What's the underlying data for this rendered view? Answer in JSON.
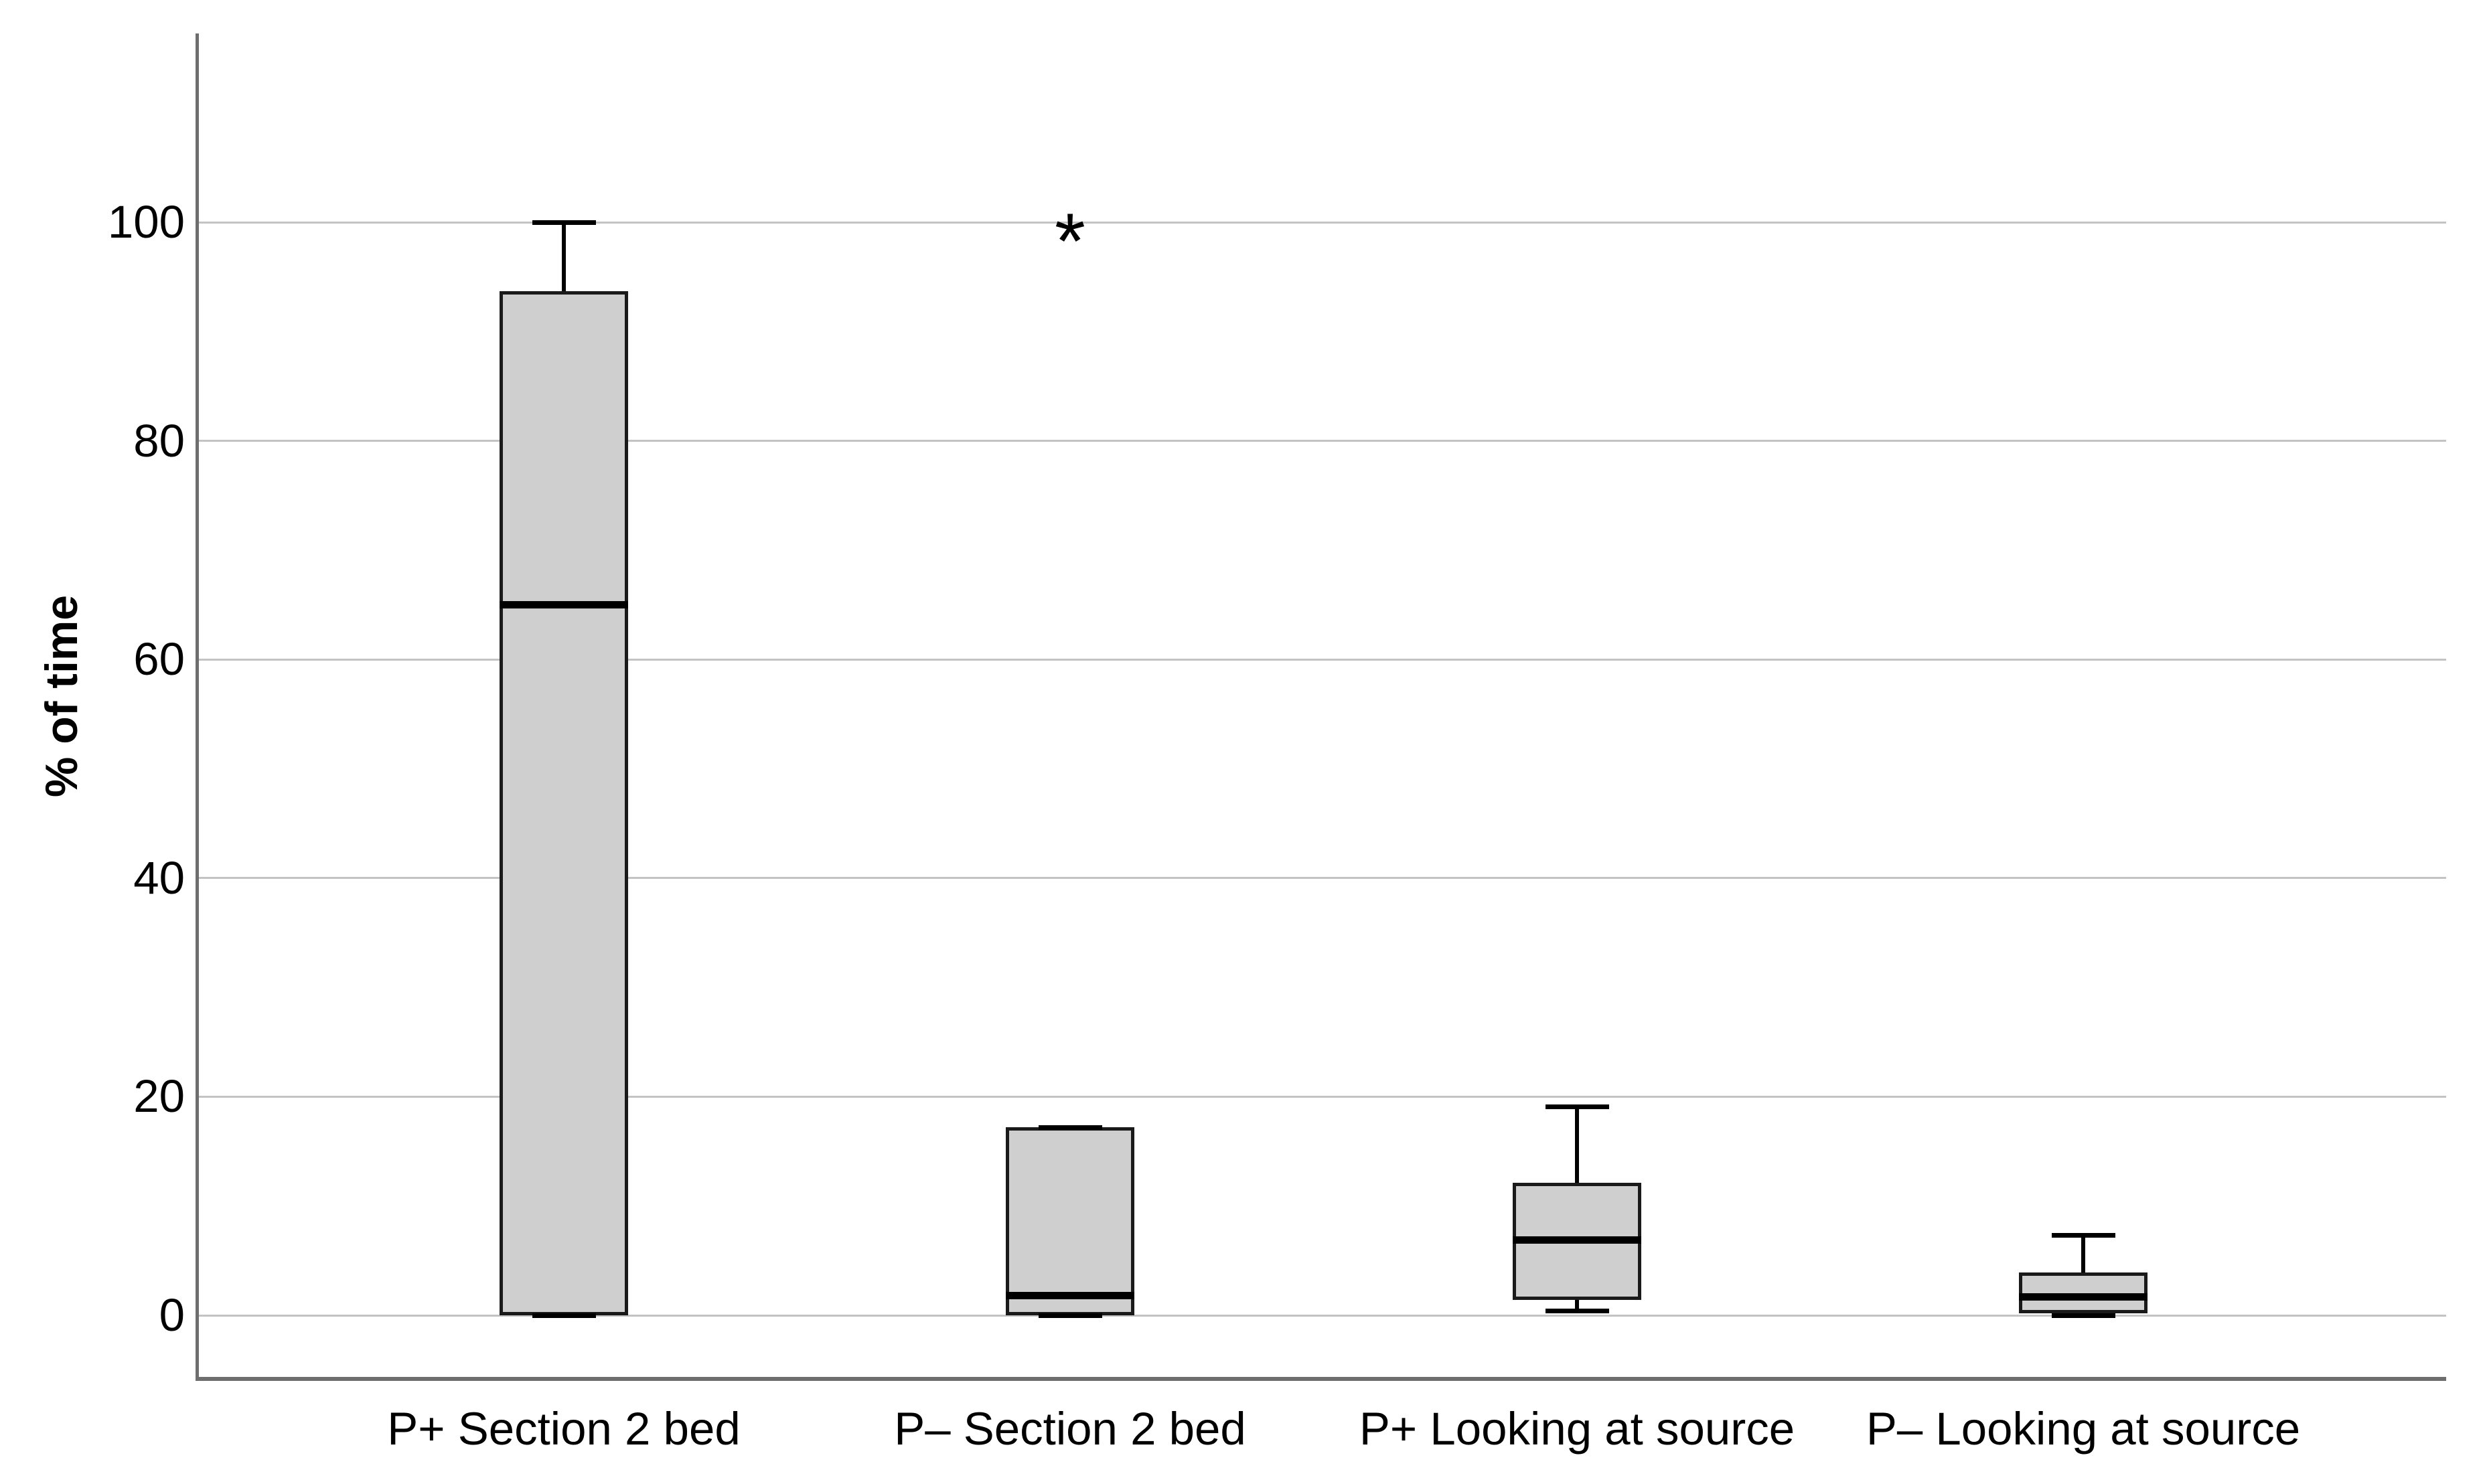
{
  "chart_data": {
    "type": "box",
    "title": "",
    "xlabel": "",
    "ylabel": "% of time",
    "yticks": [
      0,
      20,
      40,
      60,
      80,
      100
    ],
    "ylim": [
      -6,
      117
    ],
    "grid": "horizontal",
    "legend": "none",
    "outlier_marker": "*",
    "colors": {
      "box_fill": "#cfcfcf",
      "box_border": "#1a1a1a",
      "median": "#000000",
      "gridline": "#c3c3c3",
      "axis": "#6e6e6e",
      "background": "#ffffff"
    },
    "categories": [
      "P+ Section 2 bed",
      "P– Section 2 bed",
      "P+ Looking at source",
      "P– Looking at source"
    ],
    "series": [
      {
        "category": "P+ Section 2 bed",
        "min": 0,
        "q1": 0,
        "median": 65,
        "q3": 93.7,
        "max": 100,
        "outliers": []
      },
      {
        "category": "P– Section 2 bed",
        "min": 0,
        "q1": 0,
        "median": 1.8,
        "q3": 17.2,
        "max": 17.2,
        "outliers": [
          100
        ]
      },
      {
        "category": "P+ Looking at source",
        "min": 0.4,
        "q1": 1.4,
        "median": 6.9,
        "q3": 12.1,
        "max": 19.1,
        "outliers": []
      },
      {
        "category": "P– Looking at source",
        "min": 0,
        "q1": 0.2,
        "median": 1.7,
        "q3": 3.9,
        "max": 7.3,
        "outliers": []
      }
    ]
  }
}
